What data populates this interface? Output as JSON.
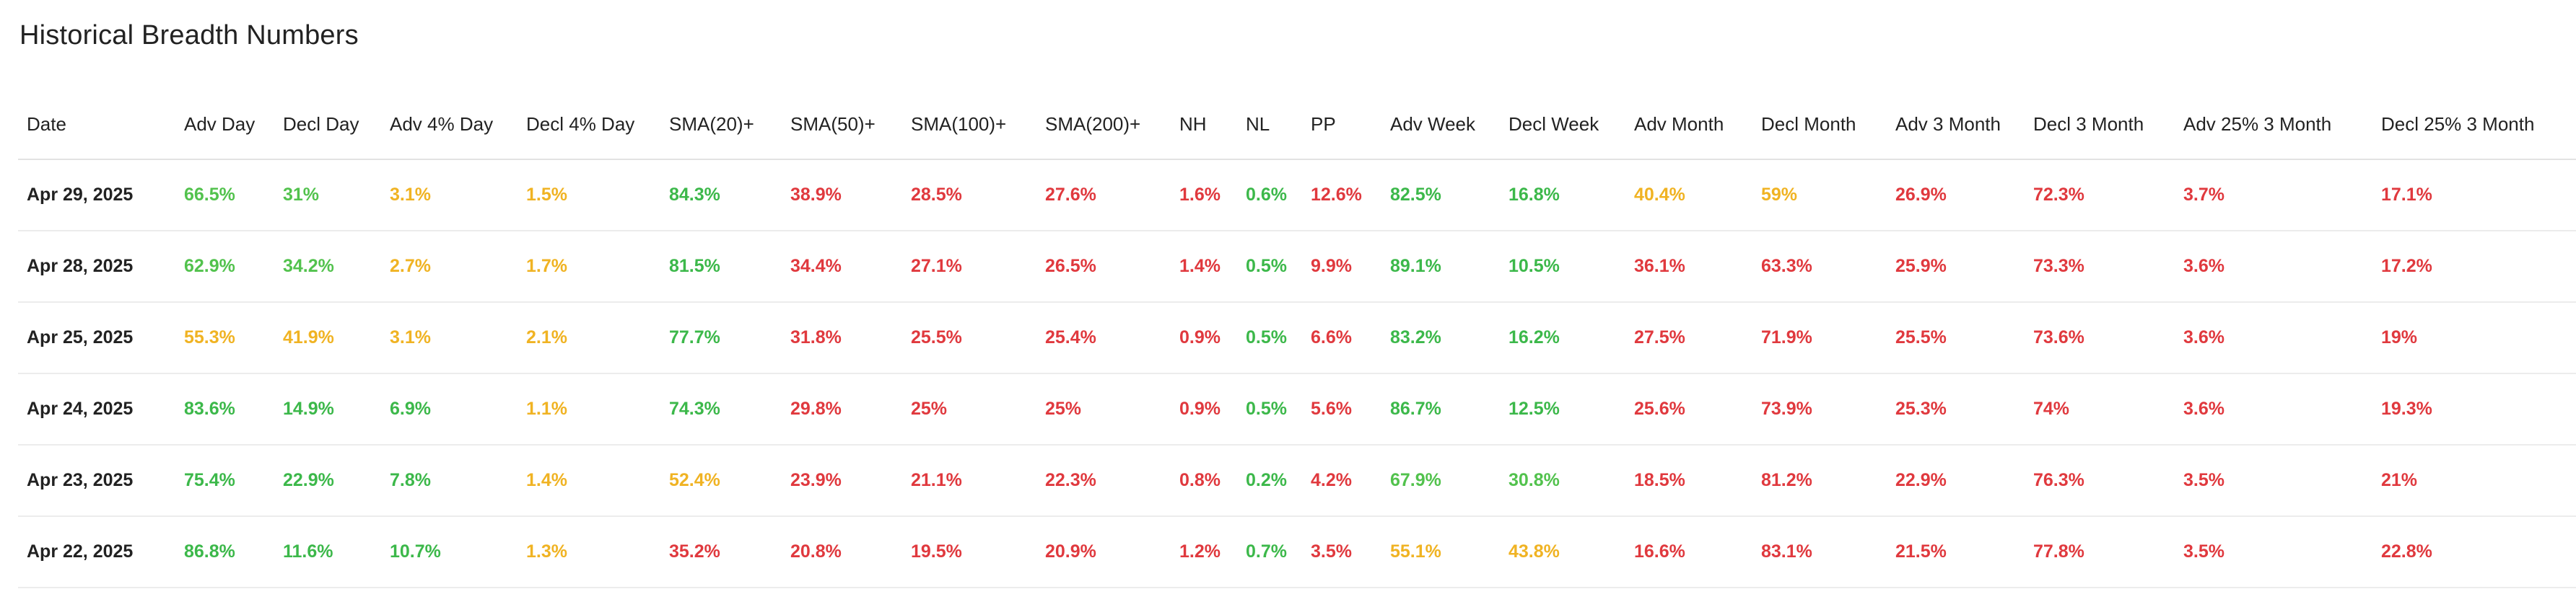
{
  "page": {
    "title": "Historical Breadth Numbers"
  },
  "colors": {
    "green": "#3cb84a",
    "yellow": "#f0b323",
    "red": "#e0393e",
    "text": "#222222"
  },
  "table": {
    "columns": [
      "Date",
      "Adv Day",
      "Decl Day",
      "Adv 4% Day",
      "Decl 4% Day",
      "SMA(20)+",
      "SMA(50)+",
      "SMA(100)+",
      "SMA(200)+",
      "NH",
      "NL",
      "PP",
      "Adv Week",
      "Decl Week",
      "Adv Month",
      "Decl Month",
      "Adv 3 Month",
      "Decl 3 Month",
      "Adv 25% 3 Month",
      "Decl 25% 3 Month"
    ],
    "rows": [
      {
        "cells": [
          {
            "v": "Apr 29, 2025",
            "c": "date"
          },
          {
            "v": "66.5%",
            "c": "lime"
          },
          {
            "v": "31%",
            "c": "lime"
          },
          {
            "v": "3.1%",
            "c": "yellow"
          },
          {
            "v": "1.5%",
            "c": "yellow"
          },
          {
            "v": "84.3%",
            "c": "green"
          },
          {
            "v": "38.9%",
            "c": "red"
          },
          {
            "v": "28.5%",
            "c": "red"
          },
          {
            "v": "27.6%",
            "c": "red"
          },
          {
            "v": "1.6%",
            "c": "red"
          },
          {
            "v": "0.6%",
            "c": "green"
          },
          {
            "v": "12.6%",
            "c": "red"
          },
          {
            "v": "82.5%",
            "c": "green"
          },
          {
            "v": "16.8%",
            "c": "green"
          },
          {
            "v": "40.4%",
            "c": "yellow"
          },
          {
            "v": "59%",
            "c": "yellow"
          },
          {
            "v": "26.9%",
            "c": "red"
          },
          {
            "v": "72.3%",
            "c": "red"
          },
          {
            "v": "3.7%",
            "c": "red"
          },
          {
            "v": "17.1%",
            "c": "red"
          }
        ]
      },
      {
        "cells": [
          {
            "v": "Apr 28, 2025",
            "c": "date"
          },
          {
            "v": "62.9%",
            "c": "lime"
          },
          {
            "v": "34.2%",
            "c": "lime"
          },
          {
            "v": "2.7%",
            "c": "yellow"
          },
          {
            "v": "1.7%",
            "c": "yellow"
          },
          {
            "v": "81.5%",
            "c": "green"
          },
          {
            "v": "34.4%",
            "c": "red"
          },
          {
            "v": "27.1%",
            "c": "red"
          },
          {
            "v": "26.5%",
            "c": "red"
          },
          {
            "v": "1.4%",
            "c": "red"
          },
          {
            "v": "0.5%",
            "c": "green"
          },
          {
            "v": "9.9%",
            "c": "red"
          },
          {
            "v": "89.1%",
            "c": "green"
          },
          {
            "v": "10.5%",
            "c": "green"
          },
          {
            "v": "36.1%",
            "c": "red"
          },
          {
            "v": "63.3%",
            "c": "red"
          },
          {
            "v": "25.9%",
            "c": "red"
          },
          {
            "v": "73.3%",
            "c": "red"
          },
          {
            "v": "3.6%",
            "c": "red"
          },
          {
            "v": "17.2%",
            "c": "red"
          }
        ]
      },
      {
        "cells": [
          {
            "v": "Apr 25, 2025",
            "c": "date"
          },
          {
            "v": "55.3%",
            "c": "yellow"
          },
          {
            "v": "41.9%",
            "c": "yellow"
          },
          {
            "v": "3.1%",
            "c": "yellow"
          },
          {
            "v": "2.1%",
            "c": "yellow"
          },
          {
            "v": "77.7%",
            "c": "green"
          },
          {
            "v": "31.8%",
            "c": "red"
          },
          {
            "v": "25.5%",
            "c": "red"
          },
          {
            "v": "25.4%",
            "c": "red"
          },
          {
            "v": "0.9%",
            "c": "red"
          },
          {
            "v": "0.5%",
            "c": "green"
          },
          {
            "v": "6.6%",
            "c": "red"
          },
          {
            "v": "83.2%",
            "c": "green"
          },
          {
            "v": "16.2%",
            "c": "green"
          },
          {
            "v": "27.5%",
            "c": "red"
          },
          {
            "v": "71.9%",
            "c": "red"
          },
          {
            "v": "25.5%",
            "c": "red"
          },
          {
            "v": "73.6%",
            "c": "red"
          },
          {
            "v": "3.6%",
            "c": "red"
          },
          {
            "v": "19%",
            "c": "red"
          }
        ]
      },
      {
        "cells": [
          {
            "v": "Apr 24, 2025",
            "c": "date"
          },
          {
            "v": "83.6%",
            "c": "green"
          },
          {
            "v": "14.9%",
            "c": "green"
          },
          {
            "v": "6.9%",
            "c": "green"
          },
          {
            "v": "1.1%",
            "c": "yellow"
          },
          {
            "v": "74.3%",
            "c": "green"
          },
          {
            "v": "29.8%",
            "c": "red"
          },
          {
            "v": "25%",
            "c": "red"
          },
          {
            "v": "25%",
            "c": "red"
          },
          {
            "v": "0.9%",
            "c": "red"
          },
          {
            "v": "0.5%",
            "c": "green"
          },
          {
            "v": "5.6%",
            "c": "red"
          },
          {
            "v": "86.7%",
            "c": "green"
          },
          {
            "v": "12.5%",
            "c": "green"
          },
          {
            "v": "25.6%",
            "c": "red"
          },
          {
            "v": "73.9%",
            "c": "red"
          },
          {
            "v": "25.3%",
            "c": "red"
          },
          {
            "v": "74%",
            "c": "red"
          },
          {
            "v": "3.6%",
            "c": "red"
          },
          {
            "v": "19.3%",
            "c": "red"
          }
        ]
      },
      {
        "cells": [
          {
            "v": "Apr 23, 2025",
            "c": "date"
          },
          {
            "v": "75.4%",
            "c": "green"
          },
          {
            "v": "22.9%",
            "c": "green"
          },
          {
            "v": "7.8%",
            "c": "green"
          },
          {
            "v": "1.4%",
            "c": "yellow"
          },
          {
            "v": "52.4%",
            "c": "yellow"
          },
          {
            "v": "23.9%",
            "c": "red"
          },
          {
            "v": "21.1%",
            "c": "red"
          },
          {
            "v": "22.3%",
            "c": "red"
          },
          {
            "v": "0.8%",
            "c": "red"
          },
          {
            "v": "0.2%",
            "c": "green"
          },
          {
            "v": "4.2%",
            "c": "red"
          },
          {
            "v": "67.9%",
            "c": "lime"
          },
          {
            "v": "30.8%",
            "c": "lime"
          },
          {
            "v": "18.5%",
            "c": "red"
          },
          {
            "v": "81.2%",
            "c": "red"
          },
          {
            "v": "22.9%",
            "c": "red"
          },
          {
            "v": "76.3%",
            "c": "red"
          },
          {
            "v": "3.5%",
            "c": "red"
          },
          {
            "v": "21%",
            "c": "red"
          }
        ]
      },
      {
        "cells": [
          {
            "v": "Apr 22, 2025",
            "c": "date"
          },
          {
            "v": "86.8%",
            "c": "green"
          },
          {
            "v": "11.6%",
            "c": "green"
          },
          {
            "v": "10.7%",
            "c": "green"
          },
          {
            "v": "1.3%",
            "c": "yellow"
          },
          {
            "v": "35.2%",
            "c": "red"
          },
          {
            "v": "20.8%",
            "c": "red"
          },
          {
            "v": "19.5%",
            "c": "red"
          },
          {
            "v": "20.9%",
            "c": "red"
          },
          {
            "v": "1.2%",
            "c": "red"
          },
          {
            "v": "0.7%",
            "c": "green"
          },
          {
            "v": "3.5%",
            "c": "red"
          },
          {
            "v": "55.1%",
            "c": "yellow"
          },
          {
            "v": "43.8%",
            "c": "yellow"
          },
          {
            "v": "16.6%",
            "c": "red"
          },
          {
            "v": "83.1%",
            "c": "red"
          },
          {
            "v": "21.5%",
            "c": "red"
          },
          {
            "v": "77.8%",
            "c": "red"
          },
          {
            "v": "3.5%",
            "c": "red"
          },
          {
            "v": "22.8%",
            "c": "red"
          }
        ]
      }
    ]
  }
}
